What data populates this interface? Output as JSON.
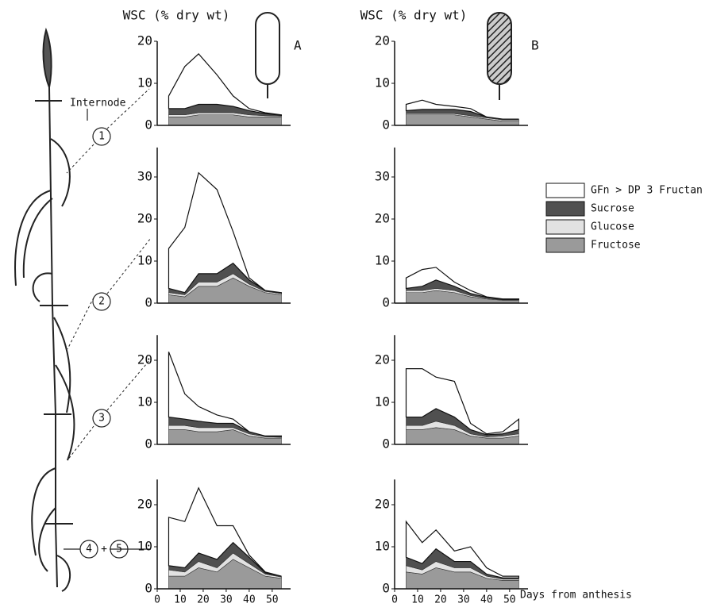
{
  "chart_data": [
    {
      "type": "stacked-area",
      "title": "WSC (% dry wt)",
      "label": "A",
      "x": [
        5,
        12,
        18,
        26,
        33,
        40,
        47,
        54
      ],
      "xlim": [
        0,
        58
      ],
      "ylim": [
        0,
        20
      ],
      "yticks": [
        0,
        10,
        20
      ],
      "series": [
        {
          "name": "Fructose",
          "color": "#9a9a9a",
          "values": [
            2,
            2,
            2.5,
            2.5,
            2.5,
            2,
            2,
            2
          ]
        },
        {
          "name": "Glucose",
          "color": "#e2e2e2",
          "values": [
            0.5,
            0.5,
            0.5,
            0.5,
            0.5,
            0.5,
            0.3,
            0.2
          ]
        },
        {
          "name": "Sucrose",
          "color": "#505050",
          "values": [
            1.5,
            1.5,
            2,
            2,
            1.5,
            1,
            0.5,
            0.2
          ]
        },
        {
          "name": "GFn > DP 3 Fructan",
          "color": "#ffffff",
          "values": [
            3,
            10,
            12,
            7,
            2.5,
            0.5,
            0.2,
            0.1
          ]
        }
      ]
    },
    {
      "type": "stacked-area",
      "x": [
        5,
        12,
        18,
        26,
        33,
        40,
        47,
        54
      ],
      "xlim": [
        0,
        58
      ],
      "ylim": [
        0,
        37
      ],
      "yticks": [
        0,
        10,
        20,
        30
      ],
      "series": [
        {
          "name": "Fructose",
          "color": "#9a9a9a",
          "values": [
            2,
            1.5,
            4,
            4,
            6,
            4,
            2.5,
            2
          ]
        },
        {
          "name": "Glucose",
          "color": "#e2e2e2",
          "values": [
            0.5,
            0.5,
            1,
            1,
            1,
            0.5,
            0.3,
            0.3
          ]
        },
        {
          "name": "Sucrose",
          "color": "#505050",
          "values": [
            1,
            0.5,
            2,
            2,
            2.5,
            1,
            0.2,
            0.1
          ]
        },
        {
          "name": "GFn > DP 3 Fructan",
          "color": "#ffffff",
          "values": [
            9.5,
            15.5,
            24,
            20,
            7.5,
            0.5,
            0,
            0.1
          ]
        }
      ]
    },
    {
      "type": "stacked-area",
      "x": [
        5,
        12,
        18,
        26,
        33,
        40,
        47,
        54
      ],
      "xlim": [
        0,
        58
      ],
      "ylim": [
        0,
        26
      ],
      "yticks": [
        0,
        10,
        20
      ],
      "series": [
        {
          "name": "Fructose",
          "color": "#9a9a9a",
          "values": [
            3.5,
            3.5,
            3,
            3,
            3.5,
            2,
            1.5,
            1.5
          ]
        },
        {
          "name": "Glucose",
          "color": "#e2e2e2",
          "values": [
            1,
            1,
            1,
            1,
            0.5,
            0.5,
            0.3,
            0.2
          ]
        },
        {
          "name": "Sucrose",
          "color": "#505050",
          "values": [
            2,
            1.5,
            1.5,
            1,
            1,
            0.5,
            0.2,
            0.2
          ]
        },
        {
          "name": "GFn > DP 3 Fructan",
          "color": "#ffffff",
          "values": [
            15.5,
            6,
            3.5,
            2,
            1,
            0,
            0,
            0.1
          ]
        }
      ]
    },
    {
      "type": "stacked-area",
      "x": [
        5,
        12,
        18,
        26,
        33,
        40,
        47,
        54
      ],
      "xlim": [
        0,
        58
      ],
      "ylim": [
        0,
        26
      ],
      "yticks": [
        0,
        10,
        20
      ],
      "xticks": [
        0,
        10,
        20,
        30,
        40,
        50
      ],
      "series": [
        {
          "name": "Fructose",
          "color": "#9a9a9a",
          "values": [
            3,
            3,
            5,
            4,
            7,
            5,
            3,
            2.5
          ]
        },
        {
          "name": "Glucose",
          "color": "#e2e2e2",
          "values": [
            1.5,
            1,
            1.5,
            1,
            1.5,
            1,
            0.5,
            0.3
          ]
        },
        {
          "name": "Sucrose",
          "color": "#505050",
          "values": [
            1,
            1,
            2,
            2,
            2.5,
            1.5,
            0.3,
            0.2
          ]
        },
        {
          "name": "GFn > DP 3 Fructan",
          "color": "#ffffff",
          "values": [
            11.5,
            11,
            15.5,
            8,
            4,
            0.5,
            0.2,
            0
          ]
        }
      ]
    },
    {
      "type": "stacked-area",
      "title": "WSC (% dry wt)",
      "label": "B",
      "x": [
        5,
        12,
        18,
        26,
        33,
        40,
        47,
        54
      ],
      "xlim": [
        0,
        58
      ],
      "ylim": [
        0,
        20
      ],
      "yticks": [
        0,
        10,
        20
      ],
      "series": [
        {
          "name": "Fructose",
          "color": "#9a9a9a",
          "values": [
            2.5,
            2.5,
            2.5,
            2.5,
            2,
            1.5,
            1,
            1
          ]
        },
        {
          "name": "Glucose",
          "color": "#e2e2e2",
          "values": [
            0.3,
            0.3,
            0.3,
            0.3,
            0.3,
            0.3,
            0.3,
            0.3
          ]
        },
        {
          "name": "Sucrose",
          "color": "#505050",
          "values": [
            0.7,
            1,
            1,
            1,
            1,
            0.2,
            0.2,
            0.2
          ]
        },
        {
          "name": "GFn > DP 3 Fructan",
          "color": "#ffffff",
          "values": [
            1.5,
            2.2,
            1.2,
            0.7,
            0.7,
            0,
            0,
            0
          ]
        }
      ]
    },
    {
      "type": "stacked-area",
      "x": [
        5,
        12,
        18,
        26,
        33,
        40,
        47,
        54
      ],
      "xlim": [
        0,
        58
      ],
      "ylim": [
        0,
        37
      ],
      "yticks": [
        0,
        10,
        20,
        30
      ],
      "series": [
        {
          "name": "Fructose",
          "color": "#9a9a9a",
          "values": [
            2.5,
            2.5,
            3,
            2.5,
            1.5,
            1,
            0.7,
            0.7
          ]
        },
        {
          "name": "Glucose",
          "color": "#e2e2e2",
          "values": [
            0.5,
            0.5,
            0.5,
            0.5,
            0.3,
            0.2,
            0.1,
            0.1
          ]
        },
        {
          "name": "Sucrose",
          "color": "#505050",
          "values": [
            0.5,
            1,
            2,
            1,
            0.5,
            0.2,
            0.1,
            0.1
          ]
        },
        {
          "name": "GFn > DP 3 Fructan",
          "color": "#ffffff",
          "values": [
            2.5,
            4,
            3,
            1,
            0.7,
            0.1,
            0.1,
            0.1
          ]
        }
      ]
    },
    {
      "type": "stacked-area",
      "x": [
        5,
        12,
        18,
        26,
        33,
        40,
        47,
        54
      ],
      "xlim": [
        0,
        58
      ],
      "ylim": [
        0,
        26
      ],
      "yticks": [
        0,
        10,
        20
      ],
      "series": [
        {
          "name": "Fructose",
          "color": "#9a9a9a",
          "values": [
            3.5,
            3.5,
            4,
            3.5,
            2,
            1.5,
            1.5,
            2
          ]
        },
        {
          "name": "Glucose",
          "color": "#e2e2e2",
          "values": [
            1,
            1,
            1.5,
            1,
            0.5,
            0.3,
            0.5,
            0.5
          ]
        },
        {
          "name": "Sucrose",
          "color": "#505050",
          "values": [
            2,
            2,
            3,
            2,
            1,
            0.5,
            0.5,
            1
          ]
        },
        {
          "name": "GFn > DP 3 Fructan",
          "color": "#ffffff",
          "values": [
            11.5,
            11.5,
            7.5,
            8.5,
            1.5,
            0.2,
            0.5,
            2.5
          ]
        }
      ]
    },
    {
      "type": "stacked-area",
      "x": [
        5,
        12,
        18,
        26,
        33,
        40,
        47,
        54
      ],
      "xlim": [
        0,
        58
      ],
      "ylim": [
        0,
        26
      ],
      "yticks": [
        0,
        10,
        20
      ],
      "xticks": [
        0,
        10,
        20,
        30,
        40,
        50
      ],
      "xlabel": "Days from anthesis",
      "series": [
        {
          "name": "Fructose",
          "color": "#9a9a9a",
          "values": [
            4,
            3.5,
            5,
            4,
            4,
            2.5,
            2,
            2
          ]
        },
        {
          "name": "Glucose",
          "color": "#e2e2e2",
          "values": [
            1.5,
            1,
            1.5,
            1,
            1,
            0.5,
            0.3,
            0.3
          ]
        },
        {
          "name": "Sucrose",
          "color": "#505050",
          "values": [
            2,
            1.5,
            3,
            1.5,
            1.5,
            0.5,
            0.3,
            0.3
          ]
        },
        {
          "name": "GFn > DP 3 Fructan",
          "color": "#ffffff",
          "values": [
            8.5,
            5,
            4.5,
            2.5,
            3.5,
            1.5,
            0.4,
            0.4
          ]
        }
      ]
    }
  ],
  "plant": {
    "label": "Internode",
    "internodes": [
      "1",
      "2",
      "3",
      "4",
      "5"
    ],
    "joiner": "+"
  }
}
